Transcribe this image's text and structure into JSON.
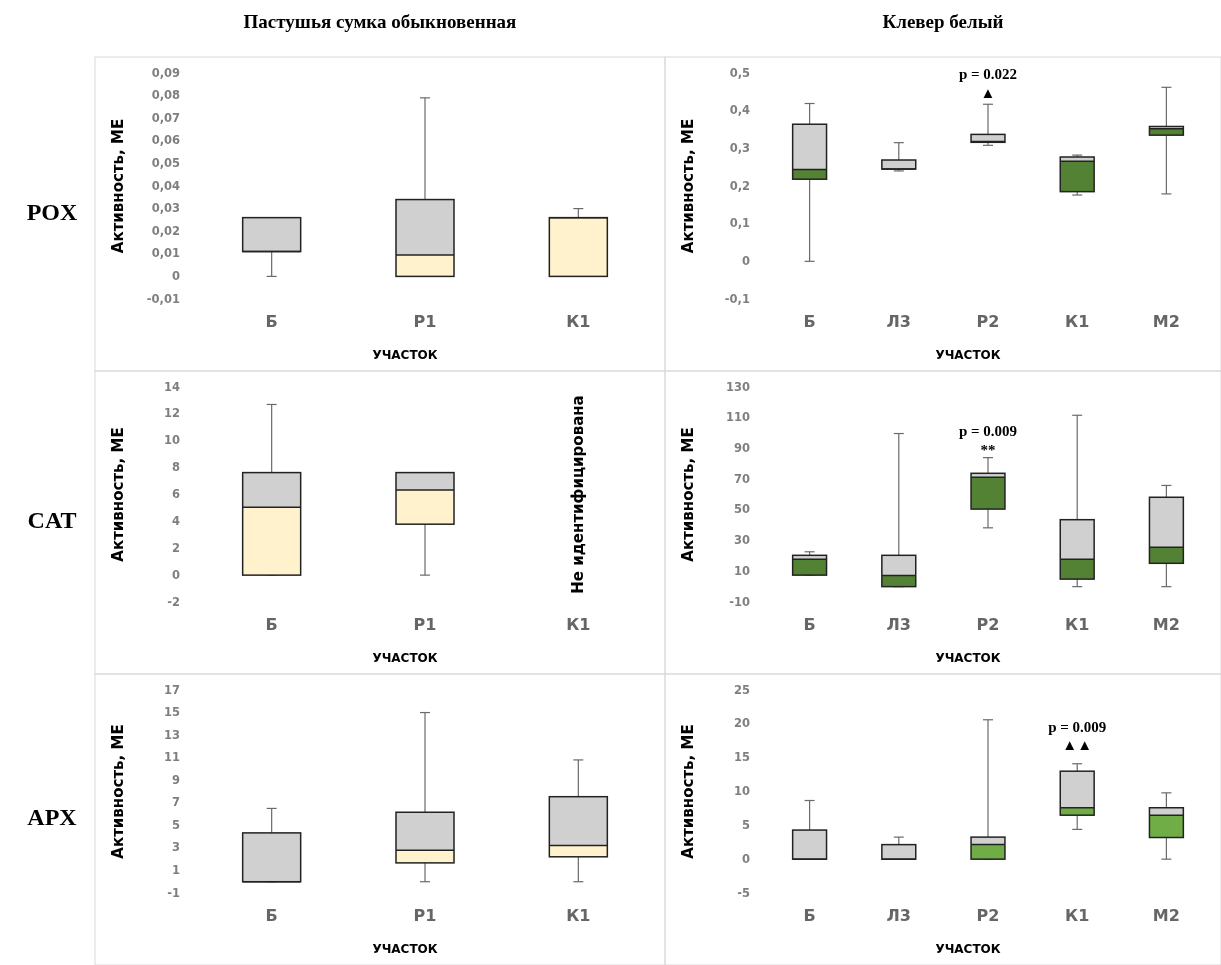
{
  "chart_data": [
    {
      "type": "box",
      "title": "Пастушья сумка обыкновенная",
      "subtitle": "POX",
      "ylabel": "Активность, МЕ",
      "xlabel": "УЧАСТОК",
      "categories": [
        "Б",
        "Р1",
        "К1"
      ],
      "ylim": [
        -0.01,
        0.09
      ],
      "yticks": [
        {
          "value": -0.01,
          "label": "-0,01"
        },
        0,
        {
          "value": 0.01,
          "label": "0,01"
        },
        {
          "value": 0.02,
          "label": "0,02"
        },
        {
          "value": 0.03,
          "label": "0,03"
        },
        {
          "value": 0.04,
          "label": "0,04"
        },
        {
          "value": 0.05,
          "label": "0,05"
        },
        {
          "value": 0.06,
          "label": "0,06"
        },
        {
          "value": 0.07,
          "label": "0,07"
        },
        {
          "value": 0.08,
          "label": "0,08"
        },
        {
          "value": 0.09,
          "label": "0,09"
        }
      ],
      "series": [
        {
          "color": "#d0d0d0",
          "colors": [
            null,
            "#fff2cc",
            "#fff2cc"
          ],
          "boxes": [
            {
              "low": 0,
              "q1": 0.011,
              "median": 0.011,
              "q3": 0.026,
              "high": 0.026
            },
            {
              "low": 0,
              "q1": 0,
              "median": 0.0095,
              "q3": 0.034,
              "high": 0.079
            },
            {
              "low": 0,
              "q1": 0,
              "median": 0.026,
              "q3": 0.026,
              "high": 0.03
            }
          ]
        }
      ]
    },
    {
      "type": "box",
      "title": "Клевер белый",
      "ylabel": "Активность, МЕ",
      "xlabel": "УЧАСТОК",
      "categories": [
        "Б",
        "Л3",
        "Р2",
        "К1",
        "М2"
      ],
      "ylim": [
        -0.1,
        0.5
      ],
      "yticks": [
        {
          "value": -0.1,
          "label": "-0,1"
        },
        0,
        {
          "value": 0.1,
          "label": "0,1"
        },
        {
          "value": 0.2,
          "label": "0,2"
        },
        {
          "value": 0.3,
          "label": "0,3"
        },
        {
          "value": 0.4,
          "label": "0,4"
        },
        {
          "value": 0.5,
          "label": "0,5"
        }
      ],
      "annotations": [
        "p = 0.022",
        "▲"
      ],
      "series": [
        {
          "color": "#d0d0d0",
          "colors": [
            "#548235",
            null,
            "#548235",
            "#548235",
            "#548235"
          ],
          "boxes": [
            {
              "low": 0,
              "q1": 0.218,
              "median": 0.244,
              "q3": 0.364,
              "high": 0.419
            },
            {
              "low": 0.24,
              "q1": 0.245,
              "median": 0.245,
              "q3": 0.269,
              "high": 0.315
            },
            {
              "low": 0.308,
              "q1": 0.316,
              "median": 0.318,
              "q3": 0.337,
              "high": 0.417
            },
            {
              "low": 0.176,
              "q1": 0.185,
              "median": 0.266,
              "q3": 0.277,
              "high": 0.282
            },
            {
              "low": 0.179,
              "q1": 0.335,
              "median": 0.352,
              "q3": 0.358,
              "high": 0.462
            }
          ]
        }
      ]
    },
    {
      "type": "box",
      "subtitle": "CAT",
      "ylabel": "Активность, МЕ",
      "xlabel": "УЧАСТОК",
      "categories": [
        "Б",
        "Р1",
        "К1"
      ],
      "ylim": [
        -2,
        14
      ],
      "yticks": [
        -2,
        0,
        2,
        4,
        6,
        8,
        10,
        12,
        14
      ],
      "annotations": [
        "Не идентифицирована"
      ],
      "series": [
        {
          "color": "#d0d0d0",
          "colors": [
            "#fff2cc",
            "#fff2cc",
            null
          ],
          "boxes": [
            {
              "low": 0,
              "q1": 0,
              "median": 5.05,
              "q3": 7.63,
              "high": 12.7
            },
            {
              "low": 0,
              "q1": 3.79,
              "median": 6.34,
              "q3": 7.63,
              "high": 7.63
            },
            null
          ]
        }
      ]
    },
    {
      "type": "box",
      "ylabel": "Активность, МЕ",
      "xlabel": "УЧАСТОК",
      "categories": [
        "Б",
        "Л3",
        "Р2",
        "К1",
        "М2"
      ],
      "ylim": [
        -10,
        130
      ],
      "yticks": [
        -10,
        10,
        30,
        50,
        70,
        90,
        110,
        130
      ],
      "annotations": [
        "p = 0.009",
        "**"
      ],
      "series": [
        {
          "color": "#d0d0d0",
          "colors": [
            "#548235",
            "#548235",
            "#548235",
            "#548235",
            "#548235"
          ],
          "boxes": [
            {
              "low": 7.5,
              "q1": 7.5,
              "median": 17.8,
              "q3": 20.4,
              "high": 22.7
            },
            {
              "low": 0,
              "q1": 0,
              "median": 7.3,
              "q3": 20.4,
              "high": 99.7
            },
            {
              "low": 38.3,
              "q1": 50.5,
              "median": 71.3,
              "q3": 73.8,
              "high": 84
            },
            {
              "low": 0,
              "q1": 4.9,
              "median": 17.8,
              "q3": 43.6,
              "high": 111.6
            },
            {
              "low": 0,
              "q1": 15.2,
              "median": 25.6,
              "q3": 58.2,
              "high": 65.9
            }
          ]
        }
      ]
    },
    {
      "type": "box",
      "subtitle": "APX",
      "ylabel": "Активность, МЕ",
      "xlabel": "УЧАСТОК",
      "categories": [
        "Б",
        "Р1",
        "К1"
      ],
      "ylim": [
        -1,
        17
      ],
      "yticks": [
        -1,
        1,
        3,
        5,
        7,
        9,
        11,
        13,
        15,
        17
      ],
      "series": [
        {
          "color": "#d0d0d0",
          "colors": [
            null,
            "#fff2cc",
            "#fff2cc"
          ],
          "boxes": [
            {
              "low": 0,
              "q1": 0,
              "median": 0,
              "q3": 4.33,
              "high": 6.5
            },
            {
              "low": 0,
              "q1": 1.67,
              "median": 2.79,
              "q3": 6.16,
              "high": 15
            },
            {
              "low": 0,
              "q1": 2.21,
              "median": 3.21,
              "q3": 7.54,
              "high": 10.8
            }
          ]
        }
      ]
    },
    {
      "type": "box",
      "ylabel": "Активность, МЕ",
      "xlabel": "УЧАСТОК",
      "categories": [
        "Б",
        "Л3",
        "Р2",
        "К1",
        "М2"
      ],
      "ylim": [
        -5,
        25
      ],
      "yticks": [
        -5,
        0,
        5,
        10,
        15,
        20,
        25
      ],
      "annotations": [
        "p = 0.009",
        "▲▲"
      ],
      "series": [
        {
          "color": "#d0d0d0",
          "colors": [
            null,
            null,
            "#70ad47",
            "#70ad47",
            "#70ad47"
          ],
          "boxes": [
            {
              "low": 0,
              "q1": 0,
              "median": 0,
              "q3": 4.3,
              "high": 8.67
            },
            {
              "low": 0,
              "q1": 0,
              "median": 0,
              "q3": 2.15,
              "high": 3.26
            },
            {
              "low": 0,
              "q1": 0,
              "median": 2.15,
              "q3": 3.26,
              "high": 20.6
            },
            {
              "low": 4.4,
              "q1": 6.5,
              "median": 7.6,
              "q3": 13,
              "high": 14.1
            },
            {
              "low": 0,
              "q1": 3.2,
              "median": 6.5,
              "q3": 7.6,
              "high": 9.8
            }
          ]
        }
      ]
    }
  ]
}
